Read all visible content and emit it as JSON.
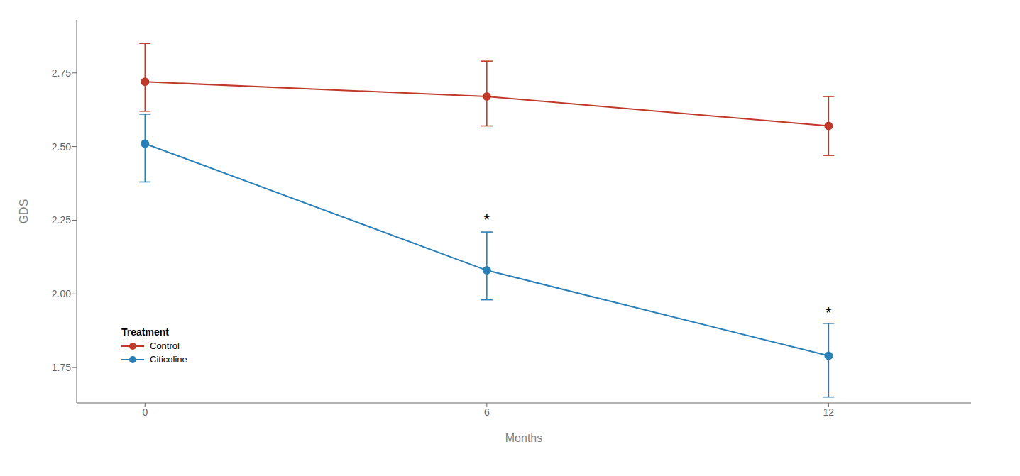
{
  "chart_data": {
    "type": "line",
    "x": [
      0,
      6,
      12
    ],
    "series": [
      {
        "name": "Control",
        "color": "#C0392B",
        "marker": "circle",
        "values": [
          2.72,
          2.67,
          2.57
        ],
        "error_lower": [
          0.1,
          0.1,
          0.1
        ],
        "error_upper": [
          0.13,
          0.12,
          0.1
        ]
      },
      {
        "name": "Citicoline",
        "color": "#2980B9",
        "marker": "circle",
        "values": [
          2.51,
          2.08,
          1.79
        ],
        "error_lower": [
          0.13,
          0.1,
          0.14
        ],
        "error_upper": [
          0.1,
          0.13,
          0.11
        ]
      }
    ],
    "xlabel": "Months",
    "ylabel": "GDS",
    "legend_title": "Treatment",
    "legend": "lower left",
    "xlim": [
      -1.2,
      14.5
    ],
    "xticks": [
      0,
      6,
      12
    ],
    "ylim": [
      1.63,
      2.93
    ],
    "yticks": [
      {
        "value": 1.75,
        "label": "1.75"
      },
      {
        "value": 2.0,
        "label": "2.00"
      },
      2.25,
      {
        "value": 2.5,
        "label": "2.50"
      },
      2.75
    ],
    "annotations": [
      {
        "x": 6,
        "y": 2.235,
        "text": "*"
      },
      {
        "x": 12,
        "y": 1.92,
        "text": "*"
      }
    ],
    "grid": false
  }
}
